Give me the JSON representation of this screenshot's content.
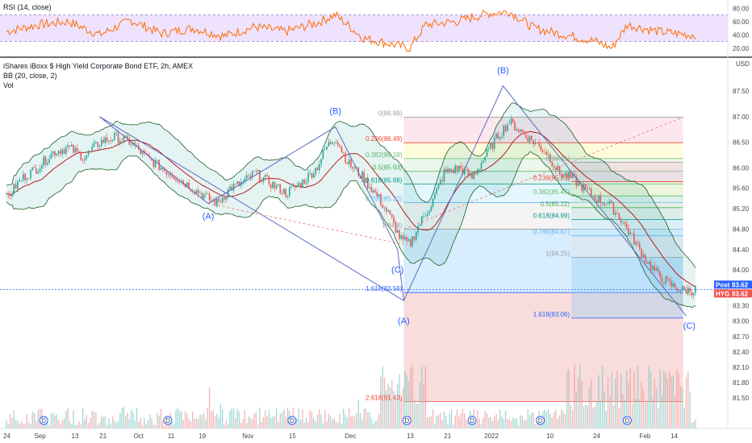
{
  "rsi_pane": {
    "label": "RSI (14, close)",
    "ticks": [
      "80.00",
      "60.00",
      "40.00",
      "20.00"
    ],
    "tick_values": [
      80,
      60,
      40,
      20
    ],
    "band": [
      30,
      70
    ]
  },
  "main_pane": {
    "title": "iShares iBoxx $ High Yield Corporate Bond ETF, 2h, AMEX",
    "indicator_1": "BB (20, close, 2)",
    "indicator_2": "Vol",
    "currency": "USD",
    "price_ticks": [
      "87.50",
      "87.00",
      "86.50",
      "86.00",
      "85.60",
      "85.20",
      "84.80",
      "84.40",
      "84.00",
      "83.62",
      "83.30",
      "83.00",
      "82.70",
      "82.40",
      "82.10",
      "81.80",
      "81.50"
    ],
    "tags": {
      "post_label": "Post",
      "post_value": "83.62",
      "symbol_label": "HYG",
      "symbol_value": "83.62"
    }
  },
  "time_axis": {
    "labels": [
      "24",
      "Sep",
      "13",
      "21",
      "Oct",
      "11",
      "19",
      "Nov",
      "15",
      "Dec",
      "13",
      "21",
      "2022",
      "10",
      "24",
      "Feb",
      "14"
    ]
  },
  "wave_labels": [
    "(A)",
    "(B)",
    "(C)",
    "(A)",
    "(B)",
    "(C)"
  ],
  "fib_1": {
    "labels": [
      "0(86.99)",
      "0.236(86.49)",
      "0.382(86.18)",
      "0.5(85.93)",
      "0.618(85.68)",
      "0.786(85.32)",
      "1(84.8)",
      "1.618(83.56)",
      "2.618(81.43)"
    ]
  },
  "fib_2": {
    "labels": [
      "0(86.11)",
      "0.236(85.73)",
      "0.382(85.45)",
      "0.5(85.22)",
      "0.618(84.99)",
      "0.786(84.67)",
      "1(84.25)",
      "1.618(83.06)"
    ]
  },
  "dividend_marker": "D",
  "colors": {
    "bb_fill": "#26a69a",
    "bb_line": "#1b5e20",
    "basis": "#b71c1c",
    "up_candle": "#26a69a",
    "down_candle": "#ef5350",
    "rsi_line": "#ff6d00",
    "rsi_band": "#e1bee7",
    "wave": "#2962ff",
    "post_tag": "#2962ff",
    "symbol_tag": "#ef5350"
  },
  "chart_data": {
    "type": "candlestick",
    "symbol": "HYG",
    "interval": "2h",
    "last_price": 83.62,
    "price_range": [
      80.9,
      88.1
    ],
    "rsi_range": [
      10,
      90
    ],
    "price_path": [
      [
        0,
        85.4
      ],
      [
        5,
        85.8
      ],
      [
        10,
        86.0
      ],
      [
        15,
        86.3
      ],
      [
        20,
        86.4
      ],
      [
        25,
        86.2
      ],
      [
        30,
        86.5
      ],
      [
        35,
        86.6
      ],
      [
        40,
        86.5
      ],
      [
        45,
        86.2
      ],
      [
        50,
        86.0
      ],
      [
        55,
        85.8
      ],
      [
        60,
        85.6
      ],
      [
        65,
        85.4
      ],
      [
        68,
        85.3
      ],
      [
        72,
        85.6
      ],
      [
        76,
        85.7
      ],
      [
        80,
        85.9
      ],
      [
        85,
        85.7
      ],
      [
        90,
        85.5
      ],
      [
        95,
        85.7
      ],
      [
        100,
        86.0
      ],
      [
        103,
        86.4
      ],
      [
        106,
        86.6
      ],
      [
        110,
        86.1
      ],
      [
        115,
        85.8
      ],
      [
        120,
        85.4
      ],
      [
        124,
        85.0
      ],
      [
        127,
        84.6
      ],
      [
        130,
        84.5
      ],
      [
        133,
        84.9
      ],
      [
        137,
        85.3
      ],
      [
        141,
        85.9
      ],
      [
        146,
        86.0
      ],
      [
        150,
        85.8
      ],
      [
        154,
        86.2
      ],
      [
        158,
        86.6
      ],
      [
        162,
        86.9
      ],
      [
        166,
        86.7
      ],
      [
        170,
        86.5
      ],
      [
        174,
        86.3
      ],
      [
        178,
        85.9
      ],
      [
        182,
        85.8
      ],
      [
        186,
        85.6
      ],
      [
        190,
        85.4
      ],
      [
        194,
        85.3
      ],
      [
        198,
        85.0
      ],
      [
        202,
        84.6
      ],
      [
        206,
        84.2
      ],
      [
        210,
        83.9
      ],
      [
        214,
        83.7
      ],
      [
        218,
        83.6
      ],
      [
        222,
        83.6
      ]
    ],
    "rsi_path": [
      [
        0,
        45
      ],
      [
        10,
        55
      ],
      [
        20,
        60
      ],
      [
        30,
        40
      ],
      [
        40,
        62
      ],
      [
        50,
        42
      ],
      [
        60,
        50
      ],
      [
        70,
        38
      ],
      [
        80,
        52
      ],
      [
        90,
        45
      ],
      [
        100,
        58
      ],
      [
        106,
        70
      ],
      [
        115,
        35
      ],
      [
        125,
        25
      ],
      [
        130,
        20
      ],
      [
        135,
        55
      ],
      [
        145,
        60
      ],
      [
        155,
        72
      ],
      [
        162,
        75
      ],
      [
        170,
        50
      ],
      [
        180,
        40
      ],
      [
        190,
        30
      ],
      [
        195,
        20
      ],
      [
        200,
        55
      ],
      [
        210,
        45
      ],
      [
        220,
        40
      ]
    ],
    "volume_peak_regions": [
      [
        120,
        135
      ],
      [
        180,
        220
      ]
    ]
  }
}
